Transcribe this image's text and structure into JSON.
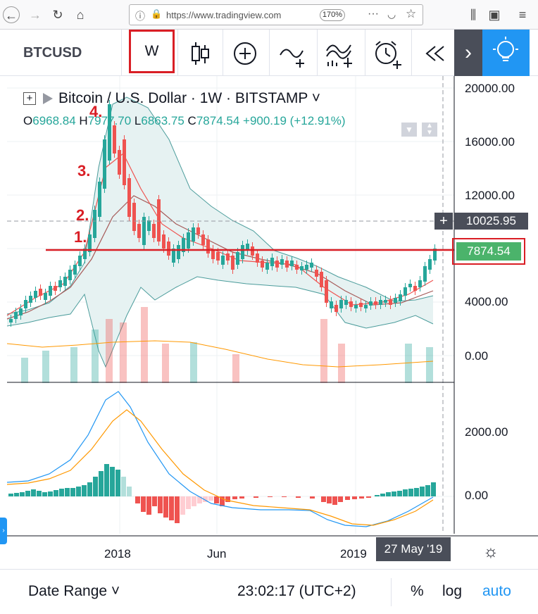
{
  "browser": {
    "url": "https://www.tradingview.com",
    "zoom": "170%"
  },
  "toolbar": {
    "symbol": "BTCUSD",
    "interval": "W"
  },
  "legend": {
    "title": "Bitcoin / U.S. Dollar · 1W · BITSTAMP ˅",
    "open_label": "O",
    "open": "6968.84",
    "high_label": "H",
    "high": "7977.70",
    "low_label": "L",
    "low": "6863.75",
    "close_label": "C",
    "close": "7874.54",
    "change": "+900.19 (+12.91%)"
  },
  "price_axis": {
    "ticks": [
      "20000.00",
      "16000.00",
      "12000.00",
      "4000.00",
      "0.00"
    ],
    "crosshair_price": "10025.95",
    "last_price": "7874.54"
  },
  "macd_axis": {
    "ticks": [
      "2000.00",
      "0.00"
    ]
  },
  "time_axis": {
    "ticks": [
      "2018",
      "Jun",
      "2019"
    ],
    "crosshair_date": "27 May '19"
  },
  "annotations": [
    "1.",
    "2.",
    "3.",
    "4."
  ],
  "bottom_bar": {
    "date_range": "Date Range ˅",
    "clock": "23:02:17 (UTC+2)",
    "percent": "%",
    "log": "log",
    "auto": "auto"
  },
  "colors": {
    "up": "#26a69a",
    "down": "#ef5350",
    "band_fill": "#e6f2f2",
    "band_line": "#4b9c9b",
    "annotation": "#d91e25",
    "macd_line": "#2196f3",
    "signal_line": "#ff9800",
    "accent": "#2196f3"
  },
  "icons": [
    "back-arrow-icon",
    "forward-arrow-icon",
    "reload-icon",
    "home-icon",
    "info-icon",
    "lock-icon",
    "more-icon",
    "pocket-icon",
    "star-icon",
    "library-icon",
    "sidebar-icon",
    "menu-icon",
    "candles-icon",
    "add-indicator-icon",
    "compare-icon",
    "indicators-icon",
    "alert-icon",
    "replay-icon",
    "chevron-right-icon",
    "idea-lightbulb-icon",
    "settings-sun-icon"
  ]
}
